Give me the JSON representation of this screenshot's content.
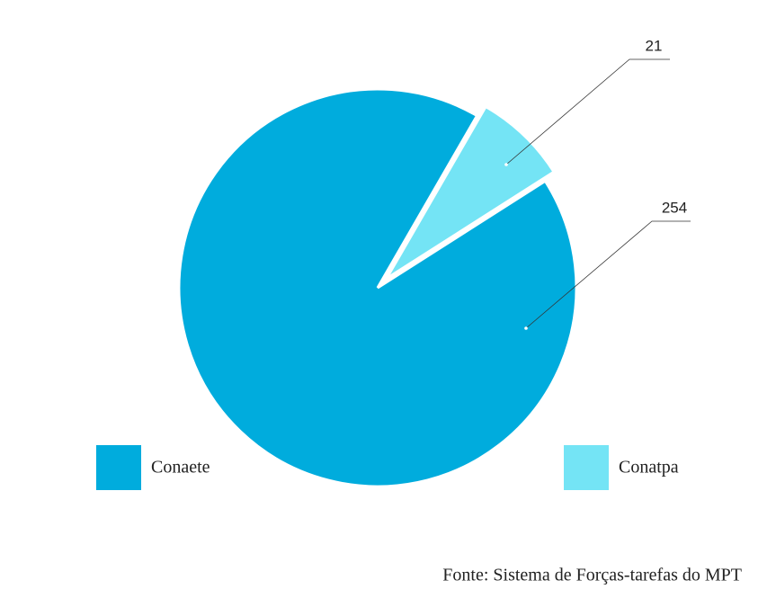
{
  "chart_data": {
    "type": "pie",
    "categories": [
      "Conaete",
      "Conatpa"
    ],
    "values": [
      254,
      21
    ],
    "colors": [
      "#00acdd",
      "#74e4f5"
    ],
    "source": "Fonte: Sistema de Forças-tarefas do MPT"
  }
}
